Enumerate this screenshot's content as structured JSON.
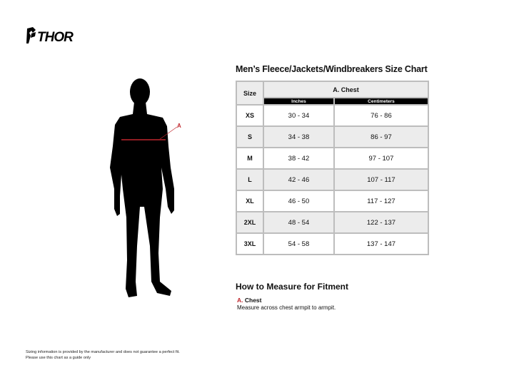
{
  "brand": {
    "logo_text": "THOR"
  },
  "figure": {
    "marker_label": "A",
    "marker_color": "#c0272d"
  },
  "chart": {
    "title": "Men’s Fleece/Jackets/Windbreakers Size Chart",
    "size_header": "Size",
    "group_header": "A. Chest",
    "sub_headers": [
      "Inches",
      "Centimeters"
    ],
    "rows": [
      {
        "size": "XS",
        "inches": "30 - 34",
        "cm": "76 - 86"
      },
      {
        "size": "S",
        "inches": "34 - 38",
        "cm": "86 - 97"
      },
      {
        "size": "M",
        "inches": "38 - 42",
        "cm": "97 - 107"
      },
      {
        "size": "L",
        "inches": "42 - 46",
        "cm": "107 - 117"
      },
      {
        "size": "XL",
        "inches": "46 - 50",
        "cm": "117 - 127"
      },
      {
        "size": "2XL",
        "inches": "48 - 54",
        "cm": "122 - 137"
      },
      {
        "size": "3XL",
        "inches": "54 - 58",
        "cm": "137 - 147"
      }
    ]
  },
  "howto": {
    "title": "How to Measure for Fitment",
    "letter": "A.",
    "label": "Chest",
    "description": "Measure across chest armpit to armpit."
  },
  "disclaimer": {
    "line1": "Sizing information is provided by the manufacturer and does not guarantee a perfect fit.",
    "line2": "Please use this chart as a guide only"
  }
}
